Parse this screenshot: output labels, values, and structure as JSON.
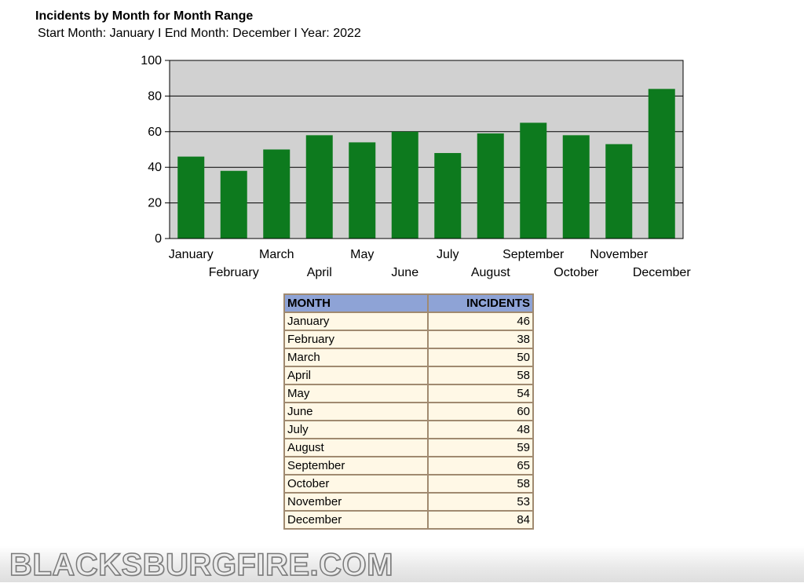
{
  "title": "Incidents by Month for Month Range",
  "subtitle": "Start Month: January I End Month: December I Year: 2022",
  "chart_data": {
    "type": "bar",
    "title": "Incidents by Month for Month Range",
    "categories": [
      "January",
      "February",
      "March",
      "April",
      "May",
      "June",
      "July",
      "August",
      "September",
      "October",
      "November",
      "December"
    ],
    "values": [
      46,
      38,
      50,
      58,
      54,
      60,
      48,
      59,
      65,
      58,
      53,
      84
    ],
    "ylim": [
      0,
      100
    ],
    "yticks": [
      0,
      20,
      40,
      60,
      80,
      100
    ],
    "grid": true,
    "legend": "none",
    "colors": {
      "bar": "#0d7a1e",
      "plot_bg": "#d1d1d1",
      "grid": "#000000"
    }
  },
  "table": {
    "headers": [
      "MONTH",
      "INCIDENTS"
    ],
    "rows": [
      [
        "January",
        "46"
      ],
      [
        "February",
        "38"
      ],
      [
        "March",
        "50"
      ],
      [
        "April",
        "58"
      ],
      [
        "May",
        "54"
      ],
      [
        "June",
        "60"
      ],
      [
        "July",
        "48"
      ],
      [
        "August",
        "59"
      ],
      [
        "September",
        "65"
      ],
      [
        "October",
        "58"
      ],
      [
        "November",
        "53"
      ],
      [
        "December",
        "84"
      ]
    ]
  },
  "watermark": "BLACKSBURGFIRE.COM"
}
